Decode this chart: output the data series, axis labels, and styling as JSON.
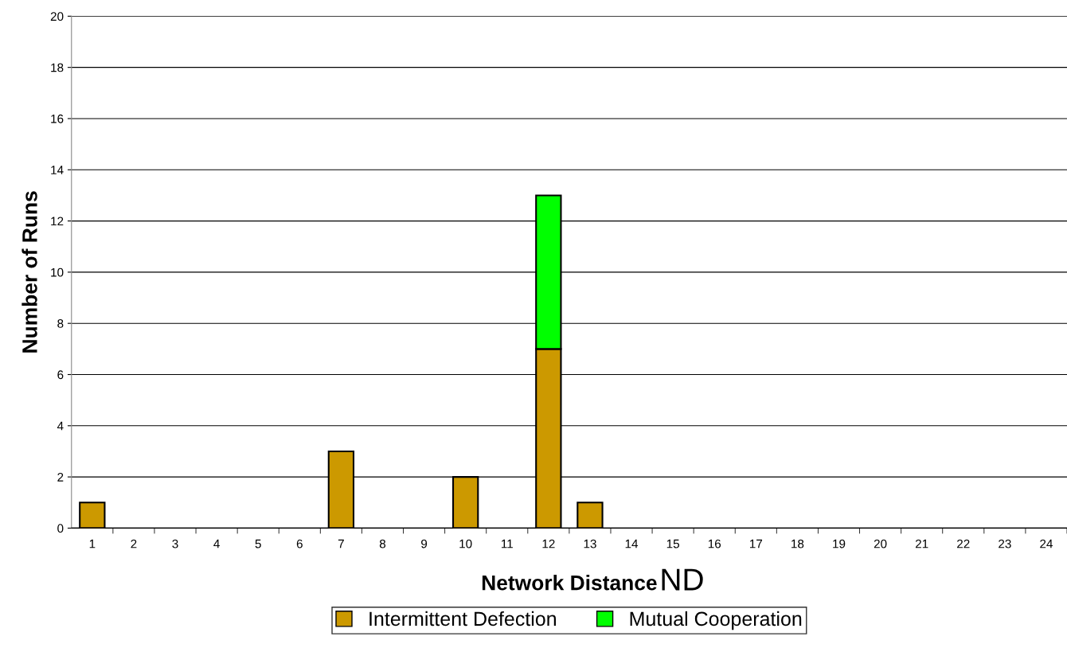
{
  "chart_data": {
    "type": "bar",
    "stacked": true,
    "xlabel": "Network Distance",
    "ylabel": "Number of Runs",
    "annotations": [
      "ND"
    ],
    "categories": [
      "1",
      "2",
      "3",
      "4",
      "5",
      "6",
      "7",
      "8",
      "9",
      "10",
      "11",
      "12",
      "13",
      "14",
      "15",
      "16",
      "17",
      "18",
      "19",
      "20",
      "21",
      "22",
      "23",
      "24"
    ],
    "series": [
      {
        "name": "Intermittent Defection",
        "color": "#cc9900",
        "values": [
          1,
          null,
          null,
          null,
          null,
          null,
          3,
          null,
          null,
          2,
          null,
          7,
          1,
          null,
          null,
          null,
          null,
          null,
          null,
          null,
          null,
          null,
          null,
          null
        ]
      },
      {
        "name": "Mutual Cooperation",
        "color": "#00ff00",
        "values": [
          null,
          null,
          null,
          null,
          null,
          null,
          null,
          null,
          null,
          null,
          null,
          6,
          null,
          null,
          null,
          null,
          null,
          null,
          null,
          null,
          null,
          null,
          null,
          null
        ]
      }
    ],
    "ylim": [
      0,
      20
    ],
    "yticks": [
      0,
      2,
      4,
      6,
      8,
      10,
      12,
      14,
      16,
      18,
      20
    ],
    "grid": "y",
    "legend": "bottom"
  }
}
